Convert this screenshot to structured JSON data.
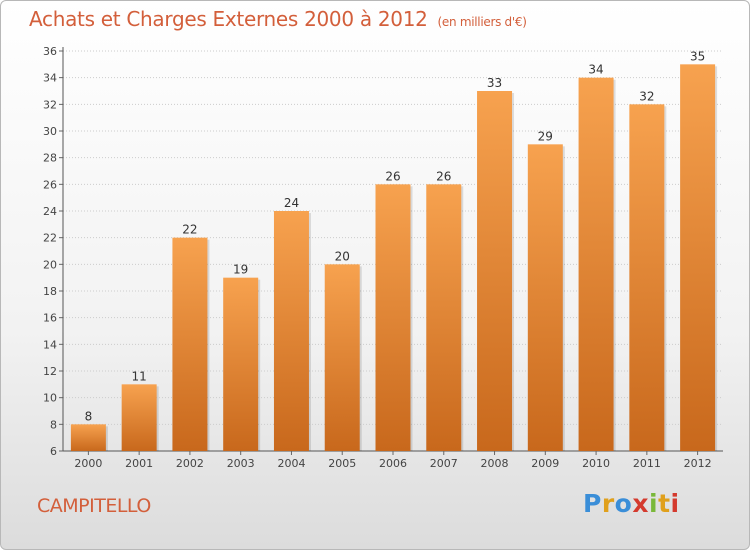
{
  "header": {
    "title": "Achats et Charges Externes 2000 à 2012",
    "unit": "(en milliers d'€)"
  },
  "footer": {
    "commune": "CAMPITELLO",
    "logo": [
      "P",
      "r",
      "o",
      "x",
      "i",
      "t",
      "i"
    ],
    "logo_colors": [
      "#3a8ed8",
      "#e0a01c",
      "#3a8ed8",
      "#d43a2e",
      "#7ab83a",
      "#e0a01c",
      "#d43a2e"
    ]
  },
  "colors": {
    "title": "#d35f3b",
    "bar_top": "#f7a24f",
    "bar_bottom": "#c8681c",
    "grid": "#cccccc"
  },
  "chart_data": {
    "type": "bar",
    "title": "Achats et Charges Externes 2000 à 2012",
    "subtitle": "(en milliers d'€)",
    "categories": [
      "2000",
      "2001",
      "2002",
      "2003",
      "2004",
      "2005",
      "2006",
      "2007",
      "2008",
      "2009",
      "2010",
      "2011",
      "2012"
    ],
    "values": [
      8,
      11,
      22,
      19,
      24,
      20,
      26,
      26,
      33,
      29,
      34,
      32,
      35
    ],
    "ylim": [
      6,
      36
    ],
    "yticks": [
      6,
      8,
      10,
      12,
      14,
      16,
      18,
      20,
      22,
      24,
      26,
      28,
      30,
      32,
      34,
      36
    ],
    "grid": true,
    "data_labels": true
  }
}
